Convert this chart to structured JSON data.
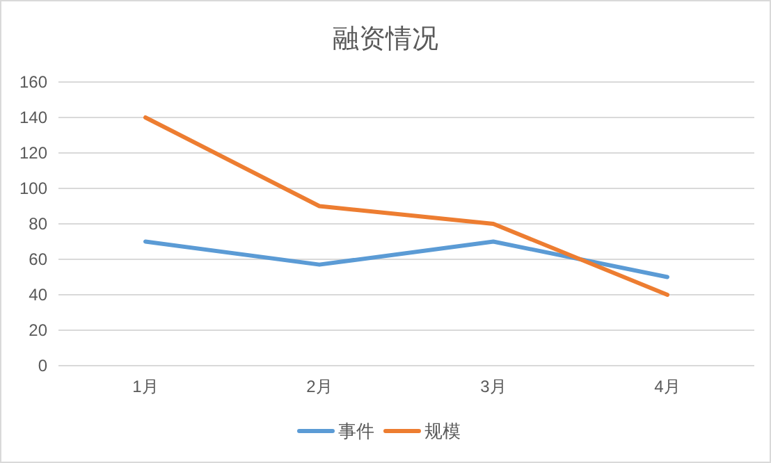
{
  "chart_data": {
    "type": "line",
    "title": "融资情况",
    "categories": [
      "1月",
      "2月",
      "3月",
      "4月"
    ],
    "series": [
      {
        "name": "事件",
        "color": "#5b9bd5",
        "values": [
          70,
          57,
          70,
          50
        ]
      },
      {
        "name": "规模",
        "color": "#ed7d31",
        "values": [
          140,
          90,
          80,
          40
        ]
      }
    ],
    "ylim": [
      0,
      160
    ],
    "yticks": [
      0,
      20,
      40,
      60,
      80,
      100,
      120,
      140,
      160
    ],
    "grid": "y",
    "legend": "bottom",
    "marker": "none",
    "line_style": "solid"
  }
}
